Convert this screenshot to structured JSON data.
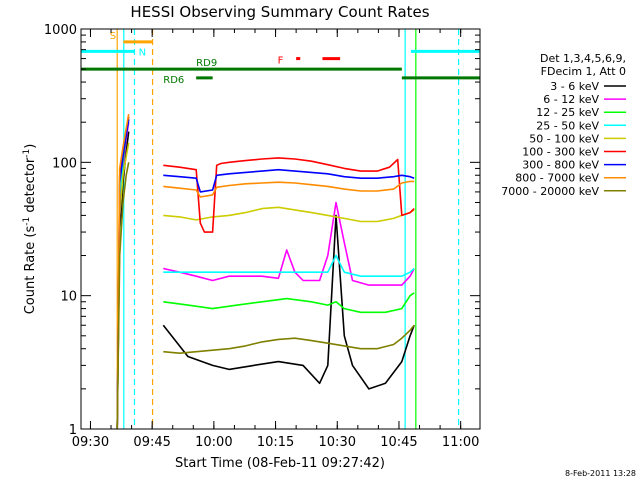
{
  "chart_data": {
    "type": "line",
    "title": "HESSI Observing Summary Count Rates",
    "xlabel": "Start Time (08-Feb-11 09:27:42)",
    "ylabel": "Count Rate (s-1 detector-1)",
    "ylabel_main": "Count Rate (s",
    "ylabel_sup1": "-1",
    "ylabel_mid": " detector",
    "ylabel_sup2": "-1",
    "ylabel_end": ")",
    "x_unit": "minutes after 09:27:42",
    "xlim": [
      0,
      97
    ],
    "ylim": [
      1,
      1000
    ],
    "y_scale": "log",
    "x_ticks": [
      {
        "label": "09:30",
        "value": 2.3
      },
      {
        "label": "09:45",
        "value": 17.3
      },
      {
        "label": "10:00",
        "value": 32.3
      },
      {
        "label": "10:15",
        "value": 47.3
      },
      {
        "label": "10:30",
        "value": 62.3
      },
      {
        "label": "10:45",
        "value": 77.3
      },
      {
        "label": "11:00",
        "value": 92.3
      }
    ],
    "y_ticks": [
      {
        "label": "1",
        "value": 1
      },
      {
        "label": "10",
        "value": 10
      },
      {
        "label": "100",
        "value": 100
      },
      {
        "label": "1000",
        "value": 1000
      }
    ],
    "legend_header": [
      "Det 1,3,4,5,6,9,",
      "FDecim 1, Att 0"
    ],
    "series": [
      {
        "name": "3 - 6 keV",
        "color": "#000000",
        "segments": [
          {
            "t": [
              8.8,
              9.4,
              10.2,
              11.0,
              11.6
            ],
            "y": [
              1,
              30,
              70,
              120,
              170
            ]
          },
          {
            "t": [
              20.0,
              26.0,
              32.0,
              36.0,
              42.0,
              48.0,
              54.0,
              58.0,
              60.0,
              62.0,
              64.0,
              66.0,
              70.0,
              74.0,
              78.0,
              80.0,
              81.0
            ],
            "y": [
              6.0,
              3.5,
              3.0,
              2.8,
              3.0,
              3.2,
              3.0,
              2.2,
              3.0,
              40,
              5.0,
              3.0,
              2.0,
              2.2,
              3.2,
              5.0,
              6.0
            ]
          }
        ]
      },
      {
        "name": "6 - 12 keV",
        "color": "#ff00ff",
        "segments": [
          {
            "t": [
              8.8,
              9.4,
              10.2,
              11.0,
              11.6
            ],
            "y": [
              1,
              40,
              90,
              150,
              200
            ]
          },
          {
            "t": [
              20.0,
              24.0,
              28.0,
              32.0,
              36.0,
              40.0,
              44.0,
              48.0,
              50.0,
              52.0,
              54.0,
              58.0,
              60.0,
              62.0,
              64.0,
              66.0,
              70.0,
              74.0,
              78.0,
              80.0,
              81.0
            ],
            "y": [
              16,
              15,
              14,
              13,
              14,
              14,
              14,
              13.5,
              22,
              15,
              13,
              13,
              20,
              50,
              25,
              13,
              12,
              12,
              12,
              14,
              16
            ]
          }
        ]
      },
      {
        "name": "12 - 25 keV",
        "color": "#00ff00",
        "segments": [
          {
            "t": [
              8.8,
              9.4,
              10.2,
              11.0,
              11.6
            ],
            "y": [
              1,
              45,
              100,
              160,
              210
            ]
          },
          {
            "t": [
              20.0,
              26.0,
              32.0,
              38.0,
              44.0,
              50.0,
              56.0,
              60.0,
              62.0,
              64.0,
              68.0,
              74.0,
              78.0,
              80.0,
              81.0
            ],
            "y": [
              9,
              8.5,
              8.0,
              8.5,
              9.0,
              9.5,
              9.0,
              8.5,
              9.0,
              8.0,
              7.5,
              7.5,
              8.0,
              10.0,
              10.5
            ]
          }
        ]
      },
      {
        "name": "25 - 50 keV",
        "color": "#00ffff",
        "segments": [
          {
            "t": [
              8.8,
              9.4,
              10.2,
              11.0,
              11.6
            ],
            "y": [
              1,
              50,
              110,
              170,
              220
            ]
          },
          {
            "t": [
              20.0,
              24.0,
              28.0,
              32.0,
              36.0,
              40.0,
              44.0,
              48.0,
              52.0,
              56.0,
              60.0,
              62.0,
              64.0,
              68.0,
              72.0,
              76.0,
              78.0,
              80.0,
              81.0
            ],
            "y": [
              15,
              15,
              15,
              15,
              15,
              15,
              15,
              15,
              15,
              15,
              15,
              20,
              15,
              14,
              14,
              14,
              14,
              15,
              16
            ]
          }
        ]
      },
      {
        "name": "50 - 100 keV",
        "color": "#cccc00",
        "segments": [
          {
            "t": [
              8.8,
              9.4,
              10.2,
              11.0,
              11.6
            ],
            "y": [
              1,
              40,
              80,
              110,
              140
            ]
          },
          {
            "t": [
              20.0,
              24.0,
              28.0,
              32.0,
              36.0,
              40.0,
              44.0,
              48.0,
              52.0,
              56.0,
              60.0,
              64.0,
              68.0,
              72.0,
              76.0,
              78.0,
              80.0,
              81.0
            ],
            "y": [
              40,
              39,
              37,
              39,
              40,
              42,
              45,
              46,
              44,
              42,
              40,
              38,
              36,
              36,
              38,
              40,
              42,
              44
            ]
          }
        ]
      },
      {
        "name": "100 - 300 keV",
        "color": "#ff0000",
        "segments": [
          {
            "t": [
              8.8,
              9.4,
              10.2,
              11.0,
              11.6
            ],
            "y": [
              1,
              80,
              120,
              170,
              220
            ]
          },
          {
            "t": [
              20.0,
              24.0,
              28.0,
              29.0,
              30.0,
              31.0,
              32.0,
              33.0,
              34.0,
              36.0,
              40.0,
              44.0,
              48.0,
              52.0,
              56.0,
              60.0,
              64.0,
              68.0,
              72.0,
              75.0,
              77.0,
              78.0,
              80.0,
              81.0
            ],
            "y": [
              95,
              92,
              88,
              35,
              30,
              30,
              30,
              95,
              98,
              100,
              103,
              106,
              108,
              106,
              102,
              96,
              90,
              86,
              86,
              92,
              105,
              40,
              42,
              45
            ]
          }
        ]
      },
      {
        "name": "300 - 800 keV",
        "color": "#0000ff",
        "segments": [
          {
            "t": [
              8.8,
              9.4,
              10.2,
              11.0,
              11.6
            ],
            "y": [
              1,
              70,
              110,
              160,
              210
            ]
          },
          {
            "t": [
              20.0,
              24.0,
              28.0,
              29.0,
              32.0,
              33.0,
              36.0,
              40.0,
              44.0,
              48.0,
              52.0,
              56.0,
              60.0,
              64.0,
              68.0,
              72.0,
              76.0,
              78.0,
              80.0,
              81.0
            ],
            "y": [
              80,
              78,
              76,
              60,
              62,
              80,
              82,
              84,
              86,
              88,
              86,
              84,
              82,
              78,
              76,
              76,
              78,
              80,
              78,
              76
            ]
          }
        ]
      },
      {
        "name": "800 - 7000 keV",
        "color": "#ff8c00",
        "segments": [
          {
            "t": [
              8.8,
              9.4,
              10.2,
              11.0,
              11.6
            ],
            "y": [
              1,
              90,
              130,
              180,
              230
            ]
          },
          {
            "t": [
              20.0,
              24.0,
              28.0,
              29.0,
              32.0,
              33.0,
              36.0,
              40.0,
              44.0,
              48.0,
              52.0,
              56.0,
              60.0,
              64.0,
              68.0,
              72.0,
              76.0,
              78.0,
              80.0,
              81.0
            ],
            "y": [
              66,
              64,
              62,
              55,
              57,
              65,
              67,
              69,
              70,
              71,
              70,
              68,
              66,
              63,
              61,
              61,
              63,
              70,
              72,
              72
            ]
          }
        ]
      },
      {
        "name": "7000 - 20000 keV",
        "color": "#808000",
        "segments": [
          {
            "t": [
              8.8,
              9.4,
              10.2,
              11.0,
              11.6
            ],
            "y": [
              1,
              20,
              50,
              80,
              100
            ]
          },
          {
            "t": [
              20.0,
              24.0,
              28.0,
              32.0,
              36.0,
              40.0,
              44.0,
              48.0,
              52.0,
              56.0,
              60.0,
              64.0,
              68.0,
              72.0,
              76.0,
              78.0,
              80.0,
              81.0
            ],
            "y": [
              3.8,
              3.7,
              3.8,
              3.9,
              4.0,
              4.2,
              4.5,
              4.7,
              4.8,
              4.6,
              4.4,
              4.2,
              4.0,
              4.0,
              4.3,
              4.8,
              5.5,
              6.0
            ]
          }
        ]
      }
    ],
    "vertical_lines": [
      {
        "t": 8.8,
        "color": "#ffa500",
        "style": "solid"
      },
      {
        "t": 10.4,
        "color": "#00ffff",
        "style": "solid"
      },
      {
        "t": 13.0,
        "color": "#00ffff",
        "style": "dashed"
      },
      {
        "t": 17.4,
        "color": "#ffa500",
        "style": "dashed"
      },
      {
        "t": 78.8,
        "color": "#00ffff",
        "style": "solid"
      },
      {
        "t": 81.4,
        "color": "#00ff00",
        "style": "solid"
      },
      {
        "t": 91.8,
        "color": "#00ffff",
        "style": "dashed"
      }
    ],
    "flags": [
      {
        "name": "S",
        "label": "S",
        "color": "#ffa500",
        "y": 800,
        "segments": [
          [
            10.3,
            17.4
          ]
        ],
        "label_t": 7.0,
        "label_side": "above"
      },
      {
        "name": "N",
        "label": "N",
        "color": "#00ffff",
        "y": 680,
        "segments": [
          [
            0,
            13.0
          ],
          [
            80.2,
            97
          ]
        ],
        "label_t": 14.0,
        "label_side": "right"
      },
      {
        "name": "RD9",
        "label": "RD9",
        "color": "#007700",
        "y": 500,
        "segments": [
          [
            0,
            78.0
          ]
        ],
        "label_t": 28.0,
        "label_side": "above"
      },
      {
        "name": "RD6",
        "label": "RD6",
        "color": "#007700",
        "y": 430,
        "segments": [
          [
            28.0,
            32.0
          ],
          [
            78.0,
            97
          ]
        ],
        "label_t": 20.0,
        "label_side": "left"
      },
      {
        "name": "F",
        "label": "F",
        "color": "#ff0000",
        "y": 600,
        "segments": [
          [
            52.3,
            53.3
          ],
          [
            58.7,
            63.0
          ]
        ],
        "label_t": 47.8,
        "label_side": "left"
      }
    ],
    "timestamp": "8-Feb-2011 13:28"
  }
}
